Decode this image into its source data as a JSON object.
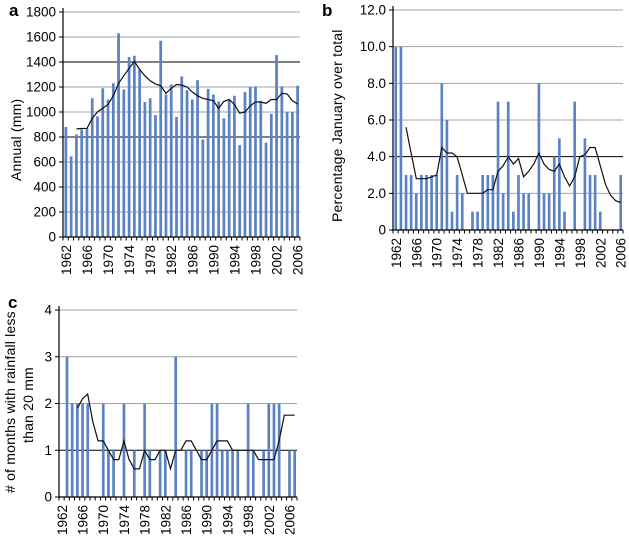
{
  "figure": {
    "bar_color": "#5b83c4",
    "trend_line_color": "#111111",
    "grid_color": "#a3a3a3",
    "emphasized_grid_color": "#000000",
    "axis_color": "#000000"
  },
  "chart_data": [
    {
      "type": "bar",
      "panel_label": "a",
      "title": "",
      "xlabel": "",
      "ylabel": "Annual (mm)",
      "ylim": [
        0,
        1800
      ],
      "yticks": [
        0,
        200,
        400,
        600,
        800,
        1000,
        1200,
        1400,
        1600,
        1800
      ],
      "ytick_labels": [
        "0",
        "200",
        "400",
        "600",
        "800",
        "1000",
        "1200",
        "1400",
        "1600",
        "1800"
      ],
      "emphasized_gridlines": [
        800,
        1400
      ],
      "xticks_labeled": [
        1962,
        1966,
        1970,
        1974,
        1978,
        1982,
        1986,
        1990,
        1994,
        1998,
        2002,
        2006
      ],
      "x": [
        1962,
        1963,
        1964,
        1965,
        1966,
        1967,
        1968,
        1969,
        1970,
        1971,
        1972,
        1973,
        1974,
        1975,
        1976,
        1977,
        1978,
        1979,
        1980,
        1981,
        1982,
        1983,
        1984,
        1985,
        1986,
        1987,
        1988,
        1989,
        1990,
        1991,
        1992,
        1993,
        1994,
        1995,
        1996,
        1997,
        1998,
        1999,
        2000,
        2001,
        2002,
        2003,
        2004,
        2005,
        2006
      ],
      "series": [
        {
          "name": "annual-rainfall-bars",
          "type": "bar",
          "values": [
            880,
            645,
            820,
            860,
            870,
            1110,
            965,
            1190,
            1100,
            1230,
            1630,
            1180,
            1440,
            1450,
            1340,
            1080,
            1110,
            975,
            1570,
            1140,
            1220,
            960,
            1285,
            1175,
            1100,
            1255,
            780,
            1185,
            1140,
            1085,
            950,
            1100,
            1130,
            735,
            1160,
            1200,
            1205,
            1090,
            755,
            985,
            1455,
            1205,
            1000,
            1000,
            1210
          ]
        },
        {
          "name": "smoothed-trend-line",
          "type": "line",
          "x_start": 1964,
          "values": [
            865,
            868,
            870,
            950,
            1000,
            1030,
            1060,
            1130,
            1230,
            1290,
            1350,
            1405,
            1340,
            1290,
            1250,
            1225,
            1210,
            1150,
            1190,
            1220,
            1215,
            1200,
            1160,
            1130,
            1110,
            1100,
            1090,
            1030,
            1085,
            1100,
            1060,
            990,
            1000,
            1050,
            1080,
            1080,
            1070,
            1100,
            1100,
            1150,
            1145,
            1090,
            1065
          ]
        }
      ],
      "legend": "none",
      "grid": "horizontal"
    },
    {
      "type": "bar",
      "panel_label": "b",
      "title": "",
      "xlabel": "",
      "ylabel": "Percentage January over total",
      "ylim": [
        0,
        12
      ],
      "yticks": [
        0,
        2,
        4,
        6,
        8,
        10,
        12
      ],
      "ytick_labels": [
        "0",
        "2.0",
        "4.0",
        "6.0",
        "8.0",
        "10.0",
        "12.0"
      ],
      "emphasized_gridlines": [
        4
      ],
      "xticks_labeled": [
        1962,
        1966,
        1970,
        1974,
        1978,
        1982,
        1986,
        1990,
        1994,
        1998,
        2002,
        2006
      ],
      "x": [
        1962,
        1963,
        1964,
        1965,
        1966,
        1967,
        1968,
        1969,
        1970,
        1971,
        1972,
        1973,
        1974,
        1975,
        1976,
        1977,
        1978,
        1979,
        1980,
        1981,
        1982,
        1983,
        1984,
        1985,
        1986,
        1987,
        1988,
        1989,
        1990,
        1991,
        1992,
        1993,
        1994,
        1995,
        1996,
        1997,
        1998,
        1999,
        2000,
        2001,
        2002,
        2003,
        2004,
        2005,
        2006
      ],
      "series": [
        {
          "name": "january-percentage-bars",
          "type": "bar",
          "values": [
            10,
            10,
            3,
            3,
            2,
            3,
            3,
            3,
            3,
            8,
            6,
            1,
            3,
            2,
            0,
            1,
            1,
            3,
            3,
            3,
            7,
            2,
            7,
            1,
            3,
            2,
            2,
            0,
            8,
            2,
            2,
            4,
            5,
            1,
            0,
            7,
            0,
            5,
            3,
            3,
            1,
            0,
            0,
            0,
            3
          ]
        },
        {
          "name": "smoothed-trend-line",
          "type": "line",
          "x_start": 1964,
          "values": [
            5.6,
            4.2,
            2.8,
            2.8,
            2.8,
            2.9,
            3.0,
            4.5,
            4.2,
            4.2,
            4.0,
            3.0,
            2.0,
            2.0,
            2.0,
            2.0,
            2.2,
            2.2,
            3.2,
            3.5,
            4.0,
            3.6,
            3.9,
            2.9,
            3.2,
            3.6,
            4.2,
            3.6,
            3.3,
            3.2,
            3.6,
            2.9,
            2.4,
            2.9,
            4.0,
            4.1,
            4.5,
            4.5,
            3.5,
            2.5,
            1.9,
            1.6,
            1.5
          ]
        }
      ],
      "legend": "none",
      "grid": "horizontal"
    },
    {
      "type": "bar",
      "panel_label": "c",
      "title": "",
      "xlabel": "",
      "ylabel": "# of months with rainfall less than 20 mm",
      "ylabel_lines": [
        "# of months with rainfall less",
        "than 20 mm"
      ],
      "ylim": [
        0,
        4
      ],
      "yticks": [
        0,
        1,
        2,
        3,
        4
      ],
      "ytick_labels": [
        "0",
        "1",
        "2",
        "3",
        "4"
      ],
      "emphasized_gridlines": [
        1
      ],
      "xticks_labeled": [
        1962,
        1966,
        1970,
        1974,
        1978,
        1982,
        1986,
        1990,
        1994,
        1998,
        2002,
        2006
      ],
      "x": [
        1962,
        1963,
        1964,
        1965,
        1966,
        1967,
        1968,
        1969,
        1970,
        1971,
        1972,
        1973,
        1974,
        1975,
        1976,
        1977,
        1978,
        1979,
        1980,
        1981,
        1982,
        1983,
        1984,
        1985,
        1986,
        1987,
        1988,
        1989,
        1990,
        1991,
        1992,
        1993,
        1994,
        1995,
        1996,
        1997,
        1998,
        1999,
        2000,
        2001,
        2002,
        2003,
        2004,
        2005,
        2006,
        2007
      ],
      "series": [
        {
          "name": "dry-months-bars",
          "type": "bar",
          "values": [
            0,
            3,
            2,
            2,
            2,
            2,
            0,
            0,
            2,
            1,
            1,
            0,
            2,
            0,
            1,
            0,
            2,
            1,
            0,
            1,
            1,
            0,
            3,
            0,
            1,
            1,
            0,
            1,
            1,
            2,
            2,
            1,
            1,
            1,
            1,
            0,
            2,
            1,
            0,
            1,
            2,
            2,
            2,
            0,
            1,
            1
          ]
        },
        {
          "name": "smoothed-trend-line",
          "type": "line",
          "x_start": 1965,
          "values": [
            1.9,
            2.1,
            2.2,
            1.6,
            1.2,
            1.2,
            1.0,
            0.8,
            0.8,
            1.2,
            0.8,
            0.6,
            0.6,
            1.0,
            0.8,
            0.8,
            1.0,
            1.0,
            0.6,
            1.0,
            1.0,
            1.2,
            1.2,
            1.0,
            0.8,
            0.8,
            1.0,
            1.2,
            1.2,
            1.2,
            1.0,
            1.0,
            1.0,
            1.0,
            1.0,
            0.8,
            0.8,
            0.8,
            0.8,
            1.2,
            1.75,
            1.75,
            1.75
          ]
        }
      ],
      "legend": "none",
      "grid": "horizontal"
    }
  ]
}
